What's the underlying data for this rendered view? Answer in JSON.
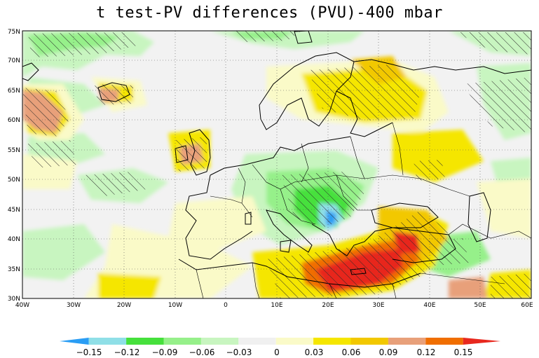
{
  "title": "t test-PV differences (PVU)-400 mbar",
  "map": {
    "lat_labels": [
      "30N",
      "35N",
      "40N",
      "45N",
      "50N",
      "55N",
      "60N",
      "65N",
      "70N",
      "75N"
    ],
    "lon_labels": [
      "40W",
      "30W",
      "20W",
      "10W",
      "0",
      "10E",
      "20E",
      "30E",
      "40E",
      "50E",
      "60E"
    ],
    "extent": {
      "lon": [
        -40,
        60
      ],
      "lat": [
        30,
        75
      ]
    }
  },
  "colorbar": {
    "labels": [
      "-0.15",
      "-0.12",
      "-0.09",
      "-0.06",
      "-0.03",
      "0",
      "0.03",
      "0.06",
      "0.09",
      "0.12",
      "0.15"
    ],
    "colors": [
      "#2a9df4",
      "#8fdfe7",
      "#46e03c",
      "#96f08a",
      "#c8f5c0",
      "#f0f0f0",
      "#fafac8",
      "#f5e600",
      "#f2c800",
      "#e8a07a",
      "#f06e00",
      "#e8281e"
    ]
  }
}
